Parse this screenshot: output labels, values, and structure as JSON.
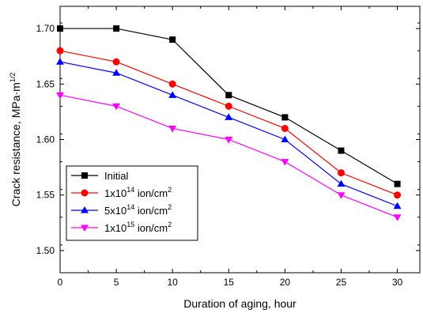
{
  "chart_data": {
    "type": "line",
    "xlabel": "Duration of aging, hour",
    "ylabel": "Crack resistance, MPa·m",
    "ylabel_sup": "1/2",
    "xlim": [
      0,
      32
    ],
    "ylim": [
      1.48,
      1.72
    ],
    "x_ticks": [
      0,
      5,
      10,
      15,
      20,
      25,
      30
    ],
    "y_ticks": [
      1.5,
      1.55,
      1.6,
      1.65,
      1.7
    ],
    "x_tick_labels": [
      "0",
      "5",
      "10",
      "15",
      "20",
      "25",
      "30"
    ],
    "y_tick_labels": [
      "1.50",
      "1.55",
      "1.60",
      "1.65",
      "1.70"
    ],
    "grid": false,
    "legend_position": "bottom-left",
    "x": [
      0,
      5,
      10,
      15,
      20,
      25,
      30
    ],
    "series": [
      {
        "name": "Initial",
        "name_sup": "",
        "name_suffix": "",
        "name_suffix_sup": "",
        "color": "#000000",
        "marker": "square",
        "values": [
          1.7,
          1.7,
          1.69,
          1.64,
          1.62,
          1.59,
          1.56
        ]
      },
      {
        "name": "1x10",
        "name_sup": "14",
        "name_suffix": " ion/cm",
        "name_suffix_sup": "2",
        "color": "#ff0000",
        "marker": "circle",
        "values": [
          1.68,
          1.67,
          1.65,
          1.63,
          1.61,
          1.57,
          1.55
        ]
      },
      {
        "name": "5x10",
        "name_sup": "14",
        "name_suffix": " ion/cm",
        "name_suffix_sup": "2",
        "color": "#0000ff",
        "marker": "triangle-up",
        "values": [
          1.67,
          1.66,
          1.64,
          1.62,
          1.6,
          1.56,
          1.54
        ]
      },
      {
        "name": "1x10",
        "name_sup": "15",
        "name_suffix": " ion/cm",
        "name_suffix_sup": "2",
        "color": "#ff00ff",
        "marker": "triangle-down",
        "values": [
          1.64,
          1.63,
          1.61,
          1.6,
          1.58,
          1.55,
          1.53
        ]
      }
    ]
  }
}
